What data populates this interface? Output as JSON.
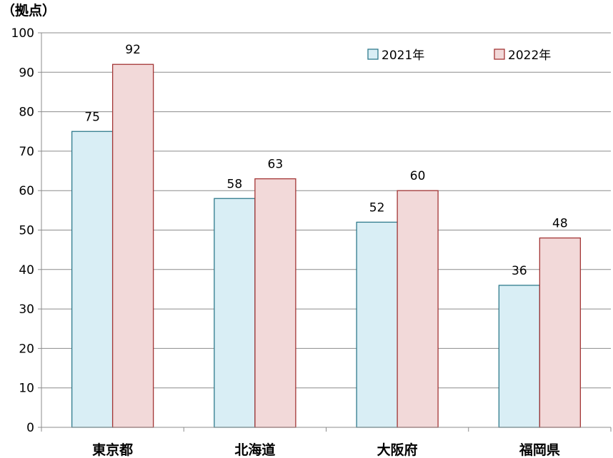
{
  "chart_data": {
    "type": "bar",
    "ylabel": "（拠点）",
    "ylim": [
      0,
      100
    ],
    "yticks": [
      0,
      10,
      20,
      30,
      40,
      50,
      60,
      70,
      80,
      90,
      100
    ],
    "grid": true,
    "legend_position": "top-right",
    "categories": [
      "東京都",
      "北海道",
      "大阪府",
      "福岡県"
    ],
    "series": [
      {
        "name": "2021年",
        "values": [
          75,
          58,
          52,
          36
        ],
        "fill": "#d9eef5",
        "stroke": "#2e7a8c"
      },
      {
        "name": "2022年",
        "values": [
          92,
          63,
          60,
          48
        ],
        "fill": "#f2d9d9",
        "stroke": "#a33535"
      }
    ]
  }
}
